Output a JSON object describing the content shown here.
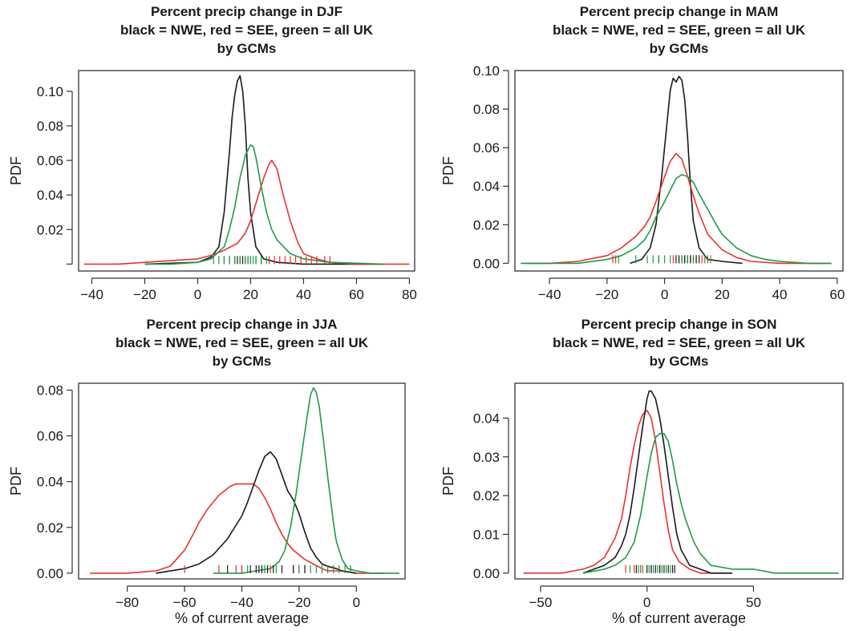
{
  "figure": {
    "colors": {
      "NWE": "#1a1a1a",
      "SEE": "#e8322e",
      "UK": "#1f9a4a",
      "axis": "#333333"
    }
  },
  "chart_data": [
    {
      "type": "line",
      "title": [
        "Percent precip change in DJF",
        "black = NWE, red = SEE, green = all UK",
        "by GCMs"
      ],
      "xlabel": "",
      "ylabel": "PDF",
      "xlim": [
        -45,
        82
      ],
      "ylim": [
        -0.004,
        0.112
      ],
      "xticks": [
        -40,
        -20,
        0,
        20,
        40,
        60,
        80
      ],
      "xtick_labels": [
        "−40",
        "−20",
        "0",
        "20",
        "40",
        "60",
        "80"
      ],
      "yticks": [
        0.0,
        0.02,
        0.04,
        0.06,
        0.08,
        0.1
      ],
      "ytick_labels": [
        "",
        "0.02",
        "0.04",
        "0.06",
        "0.08",
        "0.10"
      ],
      "series": [
        {
          "color": "NWE",
          "x": [
            -20,
            0,
            5,
            8,
            10,
            12,
            13,
            14,
            15,
            16,
            17,
            18,
            19,
            20,
            22,
            25,
            30,
            40,
            50,
            70
          ],
          "y": [
            0,
            0.001,
            0.004,
            0.01,
            0.03,
            0.065,
            0.085,
            0.098,
            0.106,
            0.109,
            0.1,
            0.08,
            0.05,
            0.03,
            0.01,
            0.003,
            0.001,
            0,
            0,
            0
          ]
        },
        {
          "color": "SEE",
          "x": [
            -43,
            -30,
            -20,
            -10,
            0,
            5,
            10,
            15,
            18,
            20,
            22,
            25,
            27,
            28,
            30,
            32,
            35,
            38,
            40,
            45,
            50,
            60,
            80
          ],
          "y": [
            0,
            0,
            0.001,
            0.002,
            0.003,
            0.005,
            0.008,
            0.012,
            0.018,
            0.025,
            0.035,
            0.05,
            0.058,
            0.06,
            0.055,
            0.042,
            0.025,
            0.012,
            0.006,
            0.003,
            0.001,
            0,
            0
          ]
        },
        {
          "color": "UK",
          "x": [
            -20,
            -10,
            0,
            5,
            10,
            12,
            14,
            16,
            18,
            20,
            21,
            22,
            24,
            26,
            28,
            30,
            35,
            40,
            50,
            70
          ],
          "y": [
            0,
            0,
            0.001,
            0.003,
            0.01,
            0.02,
            0.033,
            0.05,
            0.063,
            0.069,
            0.068,
            0.062,
            0.045,
            0.03,
            0.02,
            0.014,
            0.006,
            0.003,
            0.001,
            0
          ]
        }
      ],
      "rugs": [
        {
          "color": "SEE",
          "x": [
            27,
            29,
            31,
            33,
            35,
            37,
            39,
            41,
            43,
            45,
            48,
            50
          ]
        },
        {
          "color": "NWE",
          "x": [
            10,
            12,
            14,
            15,
            16,
            17,
            18,
            19,
            20,
            22,
            24
          ]
        },
        {
          "color": "UK",
          "x": [
            6,
            8,
            10,
            12,
            14,
            16,
            18,
            19,
            20,
            21,
            22,
            24,
            26
          ]
        }
      ]
    },
    {
      "type": "line",
      "title": [
        "Percent precip change in MAM",
        "black = NWE, red = SEE, green = all UK",
        "by GCMs"
      ],
      "xlabel": "",
      "ylabel": "PDF",
      "xlim": [
        -52,
        62
      ],
      "ylim": [
        -0.004,
        0.1
      ],
      "xticks": [
        -40,
        -20,
        0,
        20,
        40,
        60
      ],
      "xtick_labels": [
        "−40",
        "−20",
        "0",
        "20",
        "40",
        "60"
      ],
      "yticks": [
        0.0,
        0.02,
        0.04,
        0.06,
        0.08,
        0.1
      ],
      "ytick_labels": [
        "0.00",
        "0.02",
        "0.04",
        "0.06",
        "0.08",
        "0.10"
      ],
      "series": [
        {
          "color": "NWE",
          "x": [
            -12,
            -8,
            -5,
            -3,
            -1,
            1,
            2,
            3,
            4,
            5,
            6,
            7,
            8,
            9,
            10,
            12,
            15,
            20,
            27
          ],
          "y": [
            0,
            0.002,
            0.008,
            0.02,
            0.045,
            0.075,
            0.09,
            0.096,
            0.094,
            0.097,
            0.095,
            0.085,
            0.065,
            0.04,
            0.022,
            0.008,
            0.002,
            0.001,
            0
          ]
        },
        {
          "color": "SEE",
          "x": [
            -48,
            -40,
            -30,
            -20,
            -15,
            -10,
            -7,
            -5,
            -3,
            0,
            2,
            4,
            6,
            8,
            10,
            12,
            15,
            20,
            25,
            30,
            40,
            50,
            58
          ],
          "y": [
            0,
            0,
            0.001,
            0.004,
            0.008,
            0.014,
            0.019,
            0.024,
            0.032,
            0.045,
            0.053,
            0.057,
            0.054,
            0.045,
            0.035,
            0.026,
            0.015,
            0.007,
            0.003,
            0.001,
            0,
            0,
            0
          ]
        },
        {
          "color": "UK",
          "x": [
            -50,
            -40,
            -30,
            -20,
            -15,
            -10,
            -7,
            -5,
            -3,
            0,
            2,
            4,
            6,
            8,
            10,
            12,
            15,
            18,
            20,
            25,
            30,
            35,
            40,
            50,
            58
          ],
          "y": [
            0,
            0,
            0,
            0.002,
            0.004,
            0.008,
            0.012,
            0.017,
            0.024,
            0.032,
            0.038,
            0.044,
            0.046,
            0.045,
            0.042,
            0.036,
            0.028,
            0.02,
            0.015,
            0.008,
            0.004,
            0.002,
            0.001,
            0,
            0
          ]
        }
      ],
      "rugs": [
        {
          "color": "SEE",
          "x": [
            -18,
            -17,
            3,
            5,
            7,
            9,
            11,
            13,
            15
          ]
        },
        {
          "color": "NWE",
          "x": [
            -2,
            4,
            5,
            6,
            7,
            8,
            9,
            10,
            11,
            12
          ]
        },
        {
          "color": "UK",
          "x": [
            -16,
            -10,
            -6,
            -4,
            -2,
            0,
            2,
            6,
            8,
            10,
            14,
            16
          ]
        }
      ]
    },
    {
      "type": "line",
      "title": [
        "Percent precip change in JJA",
        "black = NWE, red = SEE, green = all UK",
        "by GCMs"
      ],
      "xlabel": "% of current average",
      "ylabel": "PDF",
      "xlim": [
        -97,
        17
      ],
      "ylim": [
        -0.0025,
        0.083
      ],
      "xticks": [
        -80,
        -60,
        -40,
        -20,
        0
      ],
      "xtick_labels": [
        "−80",
        "−60",
        "−40",
        "−20",
        "0"
      ],
      "yticks": [
        0.0,
        0.02,
        0.04,
        0.06,
        0.08
      ],
      "ytick_labels": [
        "0.00",
        "0.02",
        "0.04",
        "0.06",
        "0.08"
      ],
      "series": [
        {
          "color": "SEE",
          "x": [
            -93,
            -80,
            -70,
            -65,
            -60,
            -57,
            -55,
            -52,
            -50,
            -48,
            -46,
            -44,
            -42,
            -40,
            -38,
            -36,
            -34,
            -32,
            -30,
            -28,
            -26,
            -24,
            -22,
            -20,
            -18,
            -15,
            -12,
            -10,
            -5,
            0,
            10
          ],
          "y": [
            0,
            0,
            0.001,
            0.003,
            0.01,
            0.017,
            0.022,
            0.028,
            0.031,
            0.034,
            0.036,
            0.038,
            0.039,
            0.039,
            0.039,
            0.039,
            0.037,
            0.033,
            0.028,
            0.022,
            0.017,
            0.013,
            0.01,
            0.008,
            0.006,
            0.004,
            0.002,
            0.001,
            0.001,
            0,
            0
          ]
        },
        {
          "color": "NWE",
          "x": [
            -70,
            -60,
            -55,
            -50,
            -45,
            -40,
            -38,
            -36,
            -34,
            -32,
            -30,
            -28,
            -26,
            -24,
            -22,
            -20,
            -18,
            -16,
            -14,
            -12,
            -10,
            -7,
            -5,
            0
          ],
          "y": [
            0,
            0.002,
            0.004,
            0.008,
            0.015,
            0.025,
            0.031,
            0.038,
            0.045,
            0.051,
            0.053,
            0.05,
            0.043,
            0.036,
            0.032,
            0.026,
            0.018,
            0.011,
            0.007,
            0.004,
            0.003,
            0.002,
            0.001,
            0
          ]
        },
        {
          "color": "UK",
          "x": [
            -50,
            -40,
            -35,
            -30,
            -27,
            -25,
            -23,
            -21,
            -19,
            -17,
            -16,
            -15,
            -14,
            -13,
            -12,
            -11,
            -10,
            -9,
            -8,
            -7,
            -5,
            -3,
            0,
            5,
            10,
            15
          ],
          "y": [
            0,
            0,
            0.001,
            0.002,
            0.005,
            0.01,
            0.02,
            0.035,
            0.053,
            0.07,
            0.078,
            0.081,
            0.079,
            0.073,
            0.063,
            0.053,
            0.042,
            0.032,
            0.022,
            0.014,
            0.006,
            0.002,
            0.001,
            0,
            0,
            0
          ]
        }
      ],
      "rugs": [
        {
          "color": "SEE",
          "x": [
            -60,
            -48,
            -42,
            -40,
            -32,
            -30,
            -22,
            -20,
            -18,
            -10,
            -8
          ]
        },
        {
          "color": "NWE",
          "x": [
            -45,
            -37,
            -35,
            -34,
            -33,
            -31,
            -29,
            -26,
            -22,
            -20,
            -18
          ]
        },
        {
          "color": "UK",
          "x": [
            -38,
            -32,
            -28,
            -20,
            -16,
            -14,
            -12,
            -10,
            -8,
            -6,
            -4,
            -2
          ]
        }
      ]
    },
    {
      "type": "line",
      "title": [
        "Percent precip change in SON",
        "black = NWE, red = SEE, green = all UK",
        "by GCMs"
      ],
      "xlabel": "% of current average",
      "ylabel": "PDF",
      "xlim": [
        -62,
        92
      ],
      "ylim": [
        -0.0015,
        0.049
      ],
      "xticks": [
        -50,
        0,
        50
      ],
      "xtick_labels": [
        "−50",
        "0",
        "50"
      ],
      "yticks": [
        0.0,
        0.01,
        0.02,
        0.03,
        0.04
      ],
      "ytick_labels": [
        "0.00",
        "0.01",
        "0.02",
        "0.03",
        "0.04"
      ],
      "series": [
        {
          "color": "SEE",
          "x": [
            -58,
            -40,
            -30,
            -25,
            -20,
            -15,
            -12,
            -10,
            -8,
            -6,
            -4,
            -2,
            0,
            2,
            4,
            6,
            8,
            10,
            12,
            15,
            20,
            25,
            30,
            40
          ],
          "y": [
            0,
            0,
            0.001,
            0.002,
            0.004,
            0.009,
            0.014,
            0.02,
            0.027,
            0.033,
            0.038,
            0.041,
            0.042,
            0.04,
            0.034,
            0.026,
            0.018,
            0.011,
            0.006,
            0.003,
            0.001,
            0,
            0,
            0
          ]
        },
        {
          "color": "NWE",
          "x": [
            -30,
            -25,
            -20,
            -15,
            -12,
            -10,
            -8,
            -6,
            -4,
            -2,
            0,
            1,
            2,
            4,
            6,
            8,
            10,
            12,
            14,
            16,
            18,
            20,
            25,
            30,
            40
          ],
          "y": [
            0,
            0.001,
            0.002,
            0.004,
            0.007,
            0.01,
            0.015,
            0.022,
            0.03,
            0.038,
            0.045,
            0.047,
            0.047,
            0.045,
            0.04,
            0.033,
            0.025,
            0.017,
            0.01,
            0.006,
            0.004,
            0.002,
            0.001,
            0,
            0
          ]
        },
        {
          "color": "UK",
          "x": [
            -30,
            -20,
            -15,
            -10,
            -6,
            -3,
            0,
            2,
            4,
            6,
            8,
            10,
            12,
            14,
            16,
            18,
            20,
            22,
            25,
            30,
            40,
            50,
            60,
            75,
            90
          ],
          "y": [
            0,
            0.001,
            0.002,
            0.004,
            0.008,
            0.015,
            0.025,
            0.031,
            0.035,
            0.036,
            0.036,
            0.034,
            0.029,
            0.023,
            0.018,
            0.014,
            0.011,
            0.008,
            0.005,
            0.002,
            0.001,
            0.001,
            0,
            0,
            0
          ]
        }
      ],
      "rugs": [
        {
          "color": "SEE",
          "x": [
            -10,
            -6,
            -3,
            2,
            6
          ]
        },
        {
          "color": "NWE",
          "x": [
            -5,
            0,
            2,
            4,
            6,
            8,
            10,
            12,
            13
          ]
        },
        {
          "color": "UK",
          "x": [
            -8,
            -4,
            -2,
            1,
            3,
            5,
            7,
            9,
            11
          ]
        }
      ]
    }
  ]
}
